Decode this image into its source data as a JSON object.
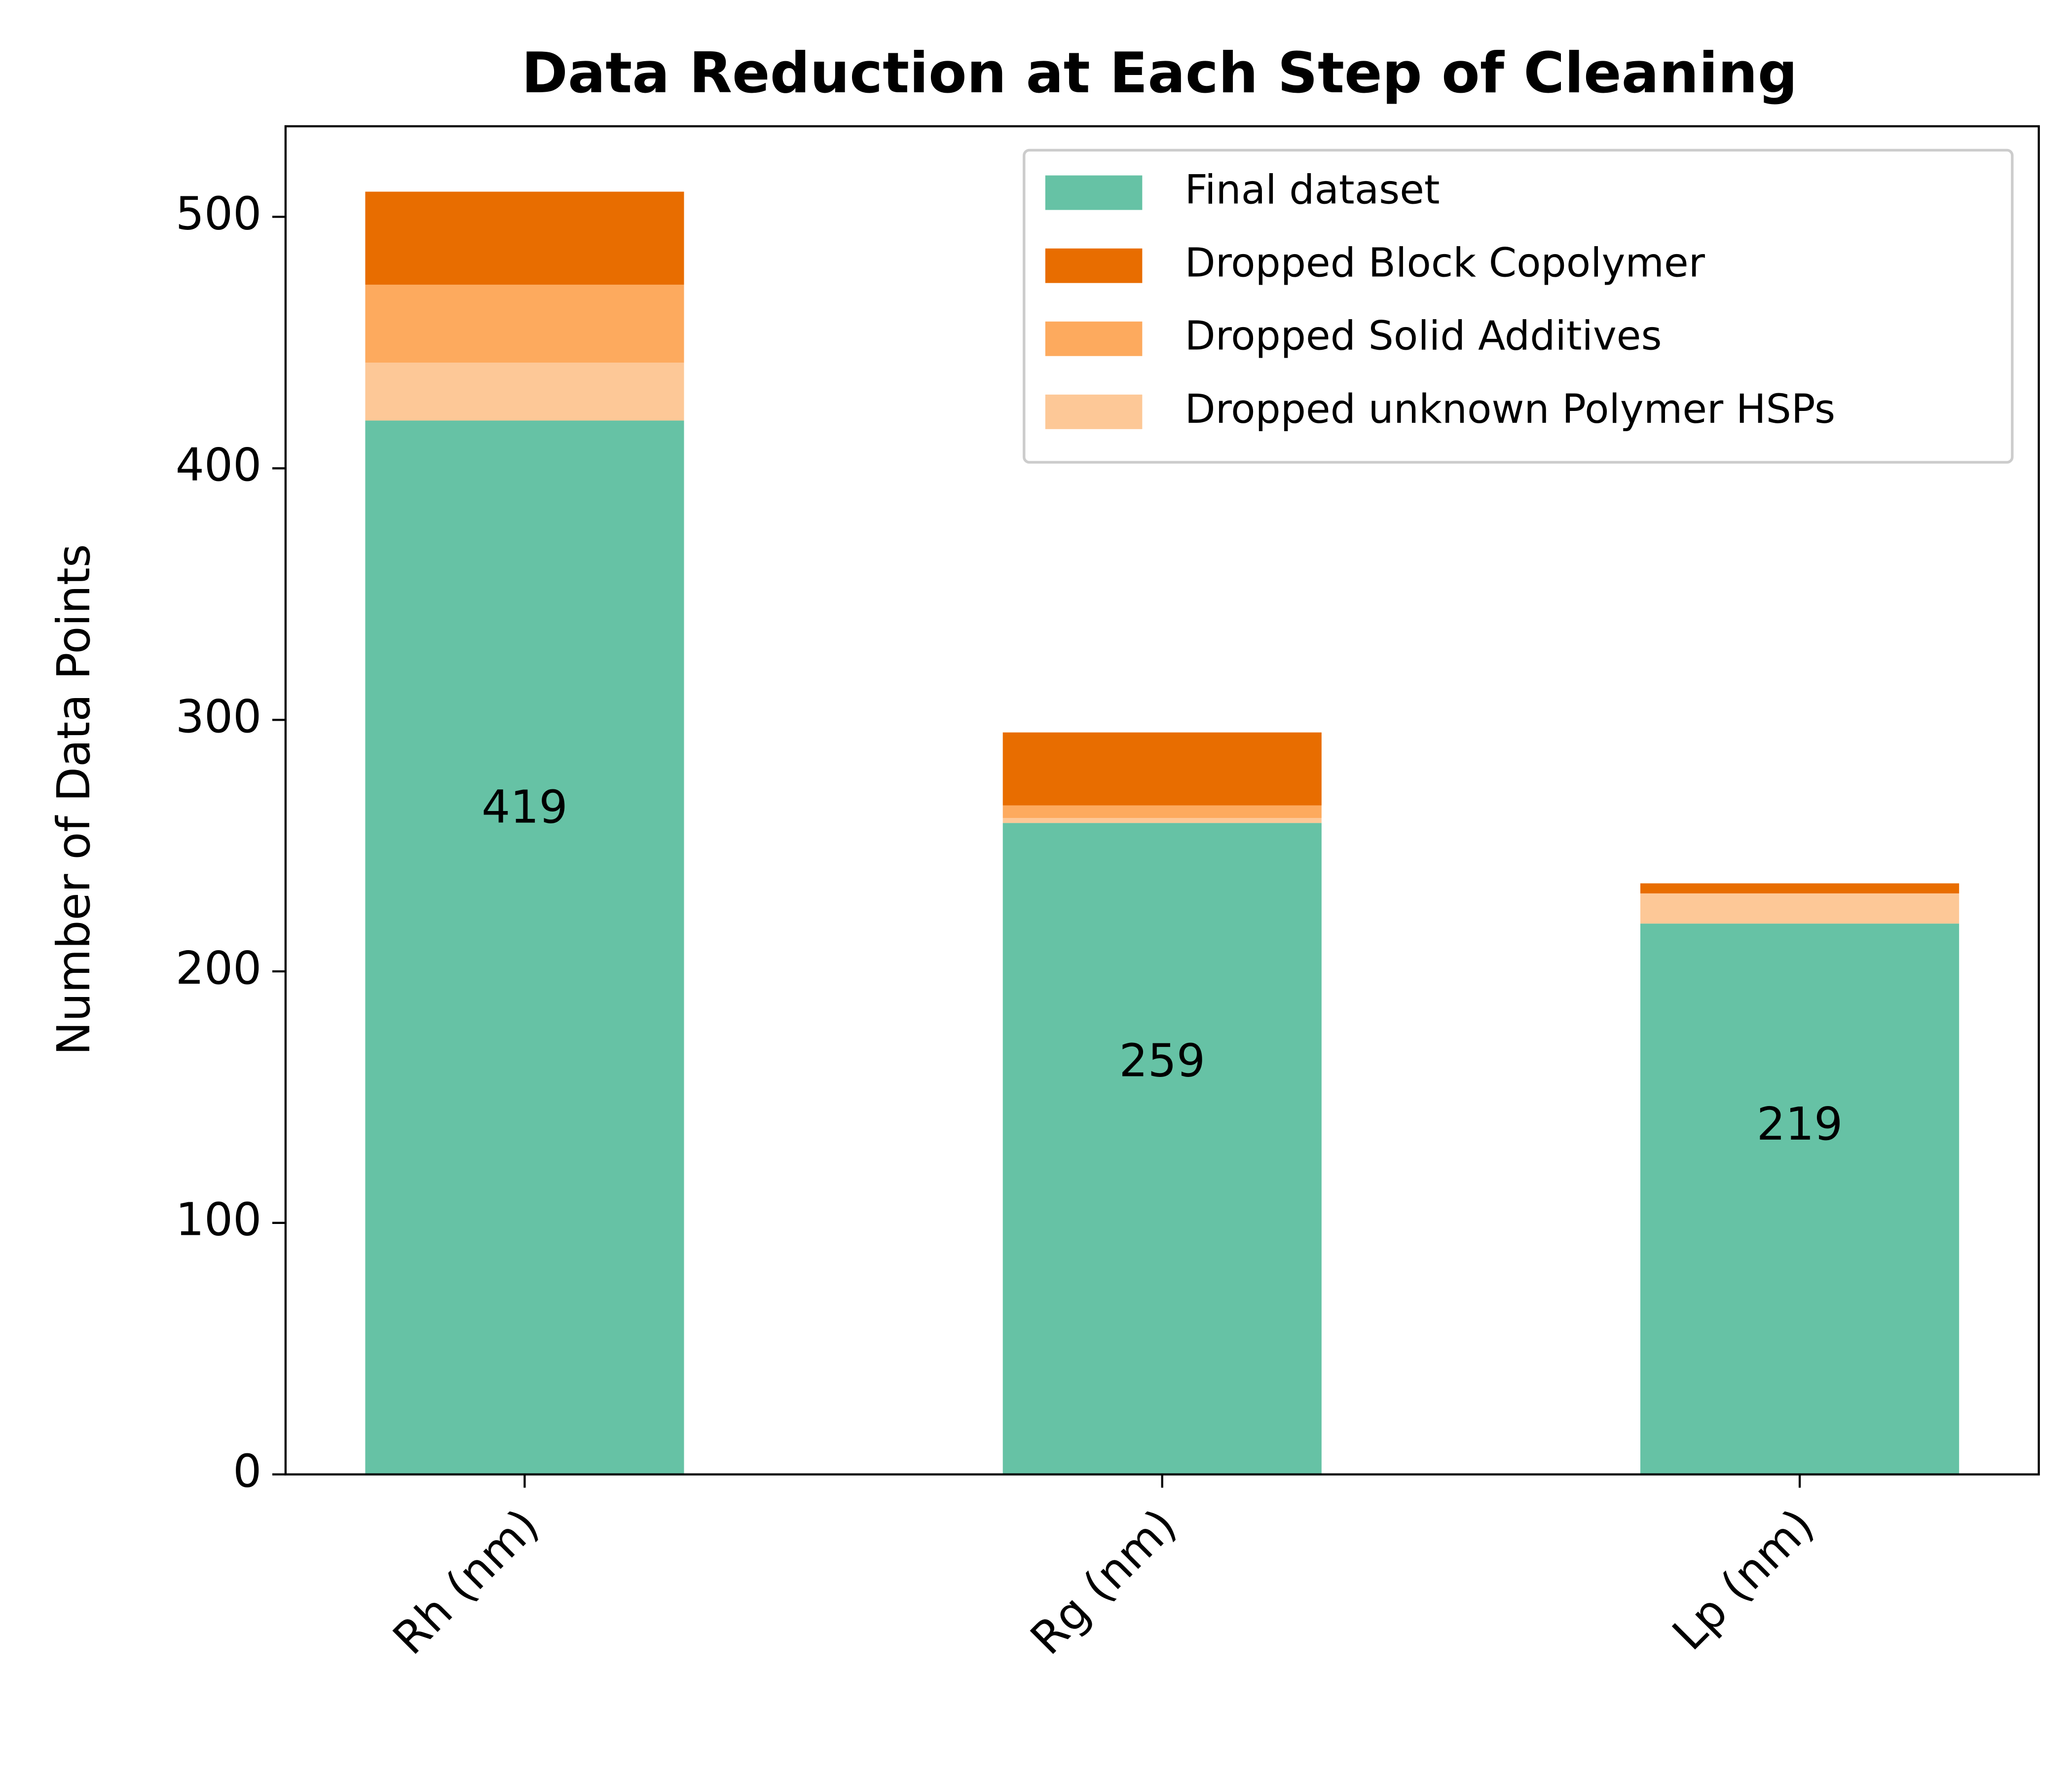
{
  "chart_data": {
    "type": "stacked_bar",
    "title": "Data Reduction at Each Step of Cleaning",
    "y_label": "Number of Data Points",
    "categories": [
      "Rh (nm)",
      "Rg (nm)",
      "Lp (nm)"
    ],
    "series": [
      {
        "name": "Final dataset",
        "color": "#66c2a5",
        "values": [
          419,
          259,
          219
        ]
      },
      {
        "name": "Dropped unknown Polymer HSPs",
        "color": "#fdc897",
        "values": [
          23,
          2,
          12
        ]
      },
      {
        "name": "Dropped Solid Additives",
        "color": "#fdaa5e",
        "values": [
          31,
          5,
          0
        ]
      },
      {
        "name": "Dropped Block Copolymer",
        "color": "#e86d00",
        "values": [
          37,
          29,
          4
        ]
      }
    ],
    "legend_order": [
      0,
      3,
      2,
      1
    ],
    "legend_position": "upper right",
    "labeled_series": 0,
    "ylim": [
      0,
      536
    ],
    "yticks": [
      0,
      100,
      200,
      300,
      400,
      500
    ]
  }
}
